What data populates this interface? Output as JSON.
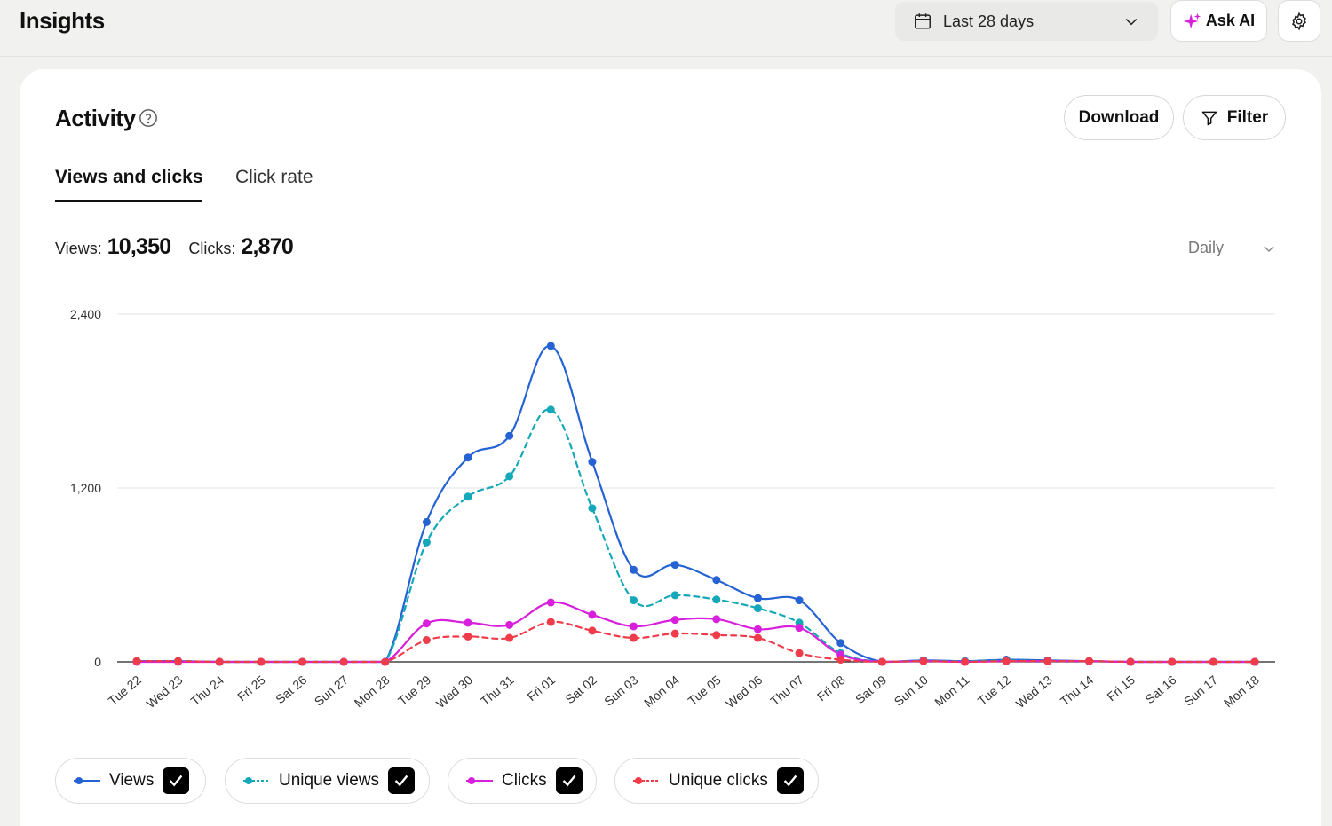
{
  "header": {
    "title": "Insights",
    "date_range": "Last 28 days",
    "ask_ai_label": "Ask AI"
  },
  "card": {
    "title": "Activity",
    "download_label": "Download",
    "filter_label": "Filter"
  },
  "tabs": [
    {
      "label": "Views and clicks",
      "active": true
    },
    {
      "label": "Click rate",
      "active": false
    }
  ],
  "stats": {
    "views_label": "Views:",
    "views_value": "10,350",
    "clicks_label": "Clicks:",
    "clicks_value": "2,870"
  },
  "interval": {
    "selected": "Daily"
  },
  "legend": [
    {
      "label": "Views",
      "checked": true
    },
    {
      "label": "Unique views",
      "checked": true
    },
    {
      "label": "Clicks",
      "checked": true
    },
    {
      "label": "Unique clicks",
      "checked": true
    }
  ],
  "colors": {
    "views": "#2563d4",
    "unique_views": "#14a8b8",
    "clicks": "#d81fdc",
    "unique_clicks": "#ef3b4a"
  },
  "icons": [
    "calendar-icon",
    "chevron-down-icon",
    "sparkle-icon",
    "gear-icon",
    "help-icon",
    "filter-icon",
    "check-icon"
  ],
  "chart_data": {
    "type": "line",
    "ylim": [
      0,
      2400
    ],
    "yticks": [
      "0",
      "1,200",
      "2,400"
    ],
    "grid": true,
    "categories": [
      "Tue 22",
      "Wed 23",
      "Thu 24",
      "Fri 25",
      "Sat 26",
      "Sun 27",
      "Mon 28",
      "Tue 29",
      "Wed 30",
      "Thu 31",
      "Fri 01",
      "Sat 02",
      "Sun 03",
      "Mon 04",
      "Tue 05",
      "Wed 06",
      "Thu 07",
      "Fri 08",
      "Sat 09",
      "Sun 10",
      "Mon 11",
      "Tue 12",
      "Wed 13",
      "Thu 14",
      "Fri 15",
      "Sat 16",
      "Sun 17",
      "Mon 18"
    ],
    "series": [
      {
        "name": "Views",
        "style": "solid",
        "values": [
          5,
          5,
          0,
          0,
          0,
          0,
          0,
          965,
          1410,
          1560,
          2180,
          1380,
          635,
          670,
          565,
          440,
          425,
          130,
          0,
          10,
          5,
          15,
          10,
          5,
          0,
          0,
          0,
          0
        ]
      },
      {
        "name": "Unique views",
        "style": "dashed",
        "values": [
          5,
          5,
          0,
          0,
          0,
          0,
          0,
          825,
          1140,
          1280,
          1740,
          1060,
          425,
          460,
          430,
          370,
          270,
          60,
          0,
          5,
          5,
          10,
          5,
          5,
          0,
          0,
          0,
          0
        ]
      },
      {
        "name": "Clicks",
        "style": "solid",
        "values": [
          0,
          0,
          0,
          0,
          0,
          0,
          0,
          265,
          270,
          255,
          410,
          325,
          245,
          290,
          295,
          225,
          235,
          50,
          0,
          5,
          0,
          5,
          5,
          5,
          0,
          0,
          0,
          0
        ]
      },
      {
        "name": "Unique clicks",
        "style": "dashed",
        "values": [
          5,
          5,
          0,
          0,
          0,
          0,
          0,
          150,
          175,
          165,
          275,
          215,
          165,
          195,
          185,
          165,
          60,
          15,
          0,
          5,
          0,
          5,
          5,
          5,
          0,
          0,
          0,
          0
        ]
      }
    ]
  }
}
